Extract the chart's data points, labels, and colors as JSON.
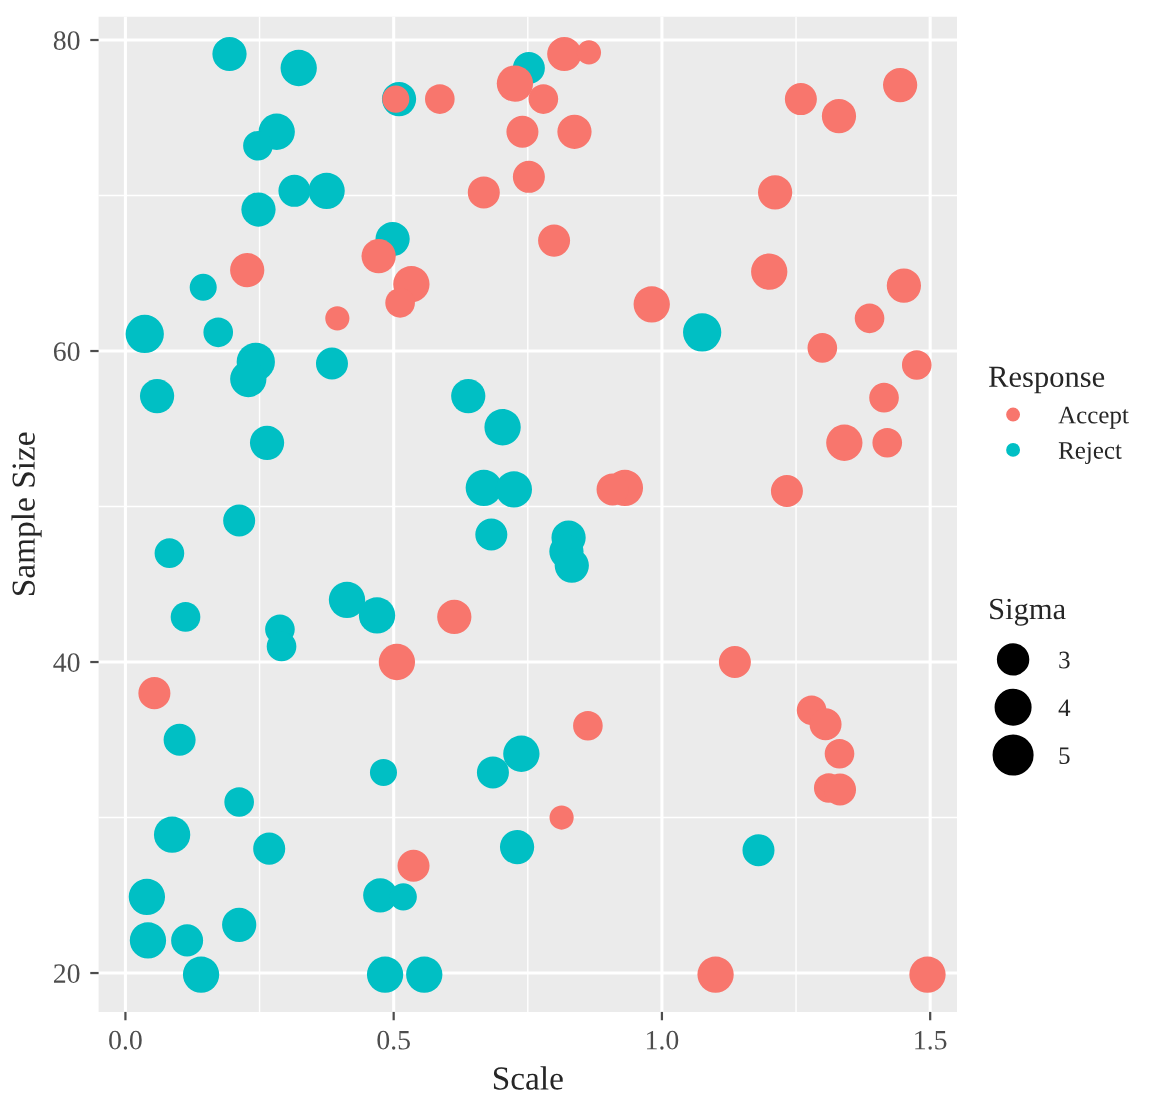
{
  "chart_data": {
    "type": "bubble",
    "xlabel": "Scale",
    "ylabel": "Sample Size",
    "legend_title": "Response",
    "annotations": [
      "Sigma"
    ],
    "xlim": [
      -0.05,
      1.55
    ],
    "ylim": [
      17.5,
      81.5
    ],
    "xticks": [
      {
        "value": 0,
        "label": "0.0"
      },
      0.5,
      {
        "value": 1,
        "label": "1.0"
      },
      1.5
    ],
    "yticks": [
      20,
      40,
      60,
      80
    ],
    "grid": true,
    "legend": "right",
    "marker": "circle",
    "size_legend": [
      3,
      4,
      5
    ],
    "series": [
      {
        "name": "Accept",
        "color": "#f8766d",
        "x": [
          0.504,
          0.586,
          0.472,
          0.533,
          0.512,
          0.227,
          0.395,
          0.726,
          0.74,
          0.752,
          0.668,
          0.779,
          0.799,
          0.818,
          0.864,
          0.837,
          1.259,
          1.33,
          1.444,
          1.211,
          1.2,
          1.451,
          1.387,
          0.981,
          1.299,
          1.475,
          1.414,
          1.34,
          1.42,
          0.931,
          0.908,
          1.233,
          1.136,
          0.862,
          0.813,
          1.279,
          1.305,
          1.331,
          1.311,
          1.332,
          1.1,
          1.495,
          0.613,
          0.506,
          0.054,
          0.537
        ],
        "values": [
          76.2,
          76.2,
          66.1,
          64.3,
          63.1,
          65.2,
          62.1,
          77.2,
          74.1,
          71.2,
          70.2,
          76.2,
          67.1,
          79.1,
          79.2,
          74.1,
          76.2,
          75.1,
          77.1,
          70.2,
          65.1,
          64.2,
          62.1,
          63.0,
          60.2,
          59.1,
          57.0,
          54.1,
          54.1,
          51.2,
          51.1,
          51.0,
          40.0,
          35.9,
          30.0,
          36.9,
          36.0,
          34.1,
          31.9,
          31.8,
          19.9,
          19.9,
          42.9,
          40.0,
          38.0,
          26.9
        ],
        "sizes": [
          2.5,
          3,
          4,
          4.5,
          3,
          4,
          2,
          4.5,
          3.5,
          3.5,
          3.5,
          3,
          3.5,
          4,
          2,
          4,
          3.5,
          4,
          4,
          4,
          4.5,
          4,
          3,
          4.5,
          3,
          3,
          3,
          4.5,
          3,
          4.5,
          3.5,
          3.5,
          3.5,
          3,
          2,
          3,
          3.5,
          3,
          3,
          3.5,
          4.5,
          4.5,
          4,
          4.5,
          3.5,
          3.5
        ]
      },
      {
        "name": "Reject",
        "color": "#00bfc4",
        "x": [
          0.194,
          0.323,
          0.51,
          0.282,
          0.247,
          0.315,
          0.375,
          0.248,
          0.498,
          0.145,
          0.036,
          0.173,
          0.243,
          0.229,
          0.385,
          0.059,
          0.639,
          0.703,
          0.264,
          0.668,
          0.724,
          0.212,
          0.752,
          1.075,
          0.826,
          0.822,
          0.832,
          1.18,
          0.082,
          0.112,
          0.288,
          0.291,
          0.413,
          0.469,
          0.682,
          0.101,
          0.481,
          0.685,
          0.738,
          0.212,
          0.087,
          0.268,
          0.73,
          0.04,
          0.475,
          0.518,
          0.042,
          0.115,
          0.212,
          0.141,
          0.484,
          0.557
        ],
        "values": [
          79.1,
          78.2,
          76.2,
          74.1,
          73.2,
          70.3,
          70.3,
          69.1,
          67.2,
          64.1,
          61.1,
          61.2,
          59.3,
          58.2,
          59.2,
          57.1,
          57.1,
          55.1,
          54.1,
          51.2,
          51.1,
          49.1,
          78.2,
          61.2,
          48.0,
          47.1,
          46.2,
          27.9,
          47.0,
          42.9,
          42.1,
          41.0,
          44.0,
          43.0,
          48.2,
          35.0,
          32.9,
          32.9,
          34.1,
          31.0,
          28.9,
          28.0,
          28.1,
          24.9,
          25.0,
          24.9,
          22.1,
          22.1,
          23.1,
          19.9,
          19.9,
          19.9
        ],
        "sizes": [
          4,
          4.5,
          4,
          4.5,
          3,
          3.5,
          4.5,
          4,
          4,
          2.5,
          5,
          3,
          5,
          4.5,
          3.5,
          4,
          4,
          4.5,
          4,
          4.5,
          4.5,
          3.5,
          3.5,
          5,
          4,
          4,
          4,
          3.5,
          3,
          3,
          3,
          3,
          4.5,
          4.5,
          3.5,
          3.5,
          2.5,
          3.5,
          4.5,
          3,
          4.5,
          3.5,
          4,
          4.5,
          4,
          2.5,
          4.5,
          3.5,
          4,
          4.5,
          4.5,
          4.5
        ]
      }
    ]
  }
}
